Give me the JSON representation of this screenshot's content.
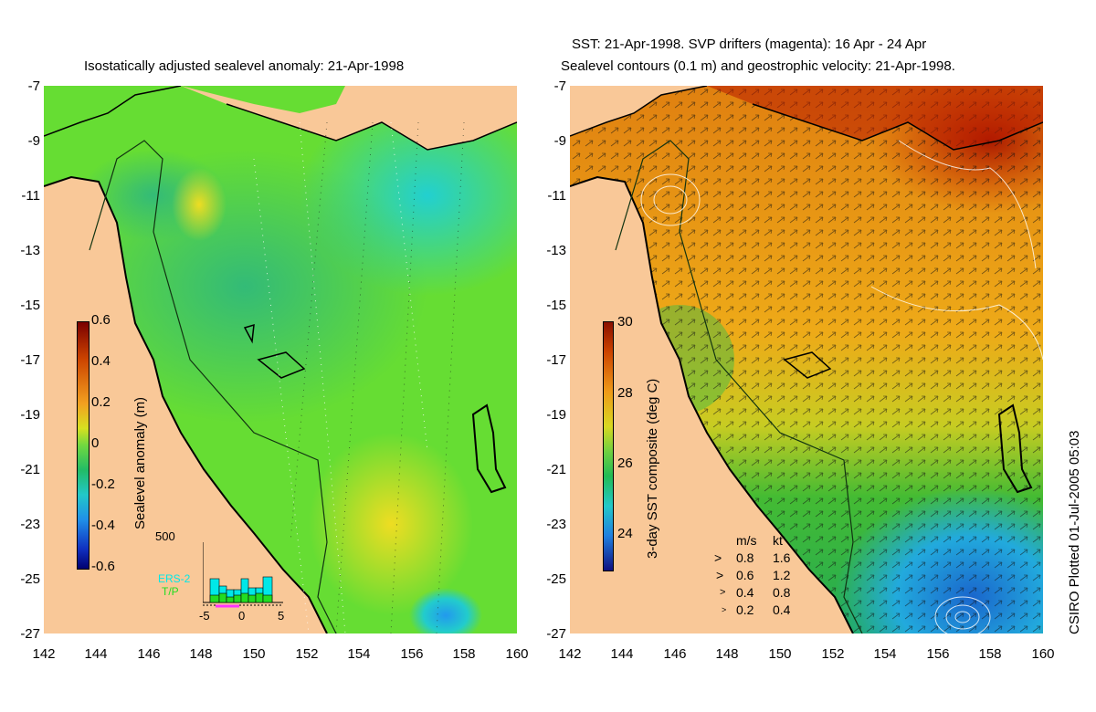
{
  "left_panel": {
    "title": "Isostatically adjusted sealevel anomaly: 21-Apr-1998",
    "colorbar": {
      "label": "Sealevel anomaly (m)",
      "ticks": [
        "0.6",
        "0.4",
        "0.2",
        "0",
        "-0.2",
        "-0.4",
        "-0.6"
      ]
    },
    "inset": {
      "ymax_label": "500",
      "legend": [
        "ERS-2",
        "T/P"
      ],
      "xticks": [
        "-5",
        "0",
        "5"
      ],
      "ers2_color": "#00e8e8",
      "tp_color": "#22dd22"
    }
  },
  "right_panel": {
    "title_line1": "SST: 21-Apr-1998. SVP drifters (magenta): 16 Apr - 24 Apr",
    "title_line2": "Sealevel contours (0.1 m) and geostrophic velocity: 21-Apr-1998.",
    "colorbar": {
      "label": "3-day SST composite (deg C)",
      "ticks": [
        "30",
        "28",
        "26",
        "24"
      ]
    },
    "velocity_key": {
      "header_ms": "m/s",
      "header_kt": "kt",
      "rows": [
        {
          "ms": "0.8",
          "kt": "1.6"
        },
        {
          "ms": "0.6",
          "kt": "1.2"
        },
        {
          "ms": "0.4",
          "kt": "0.8"
        },
        {
          "ms": "0.2",
          "kt": "0.4"
        }
      ]
    }
  },
  "axes": {
    "y_ticks": [
      "-7",
      "-9",
      "-11",
      "-13",
      "-15",
      "-17",
      "-19",
      "-21",
      "-23",
      "-25",
      "-27"
    ],
    "x_ticks": [
      "142",
      "144",
      "146",
      "148",
      "150",
      "152",
      "154",
      "156",
      "158",
      "160"
    ]
  },
  "credit": "CSIRO Plotted 01-Jul-2005 05:03",
  "colors": {
    "land": "#f9c898",
    "sla_base": "#66dd33",
    "sst_warm": "#e89a14",
    "sst_green": "#22bb33"
  }
}
